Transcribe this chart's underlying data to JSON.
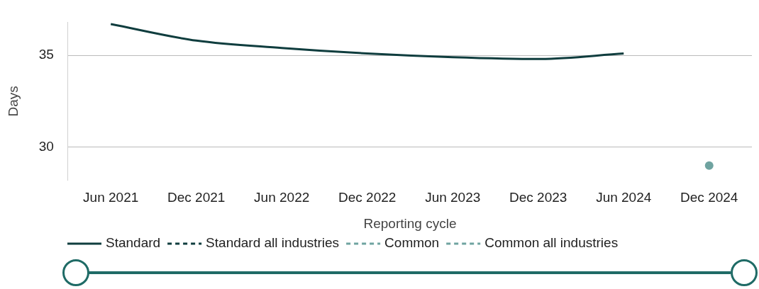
{
  "chart_data": {
    "type": "line",
    "xlabel": "Reporting cycle",
    "ylabel": "Days",
    "categories": [
      "Jun 2021",
      "Dec 2021",
      "Jun 2022",
      "Dec 2022",
      "Jun 2023",
      "Dec 2023",
      "Jun 2024",
      "Dec 2024"
    ],
    "series": [
      {
        "name": "Standard",
        "color": "#0f3d3e",
        "line_style": "solid",
        "marker": "none",
        "values": [
          36.7,
          35.8,
          35.4,
          35.1,
          34.9,
          34.8,
          35.1,
          null
        ]
      },
      {
        "name": "Standard all industries",
        "color": "#0f3d3e",
        "line_style": "dashed",
        "marker": "none",
        "values": [
          null,
          null,
          null,
          null,
          null,
          null,
          null,
          null
        ]
      },
      {
        "name": "Common",
        "color": "#6fa3a0",
        "line_style": "dashed",
        "marker": "circle",
        "values": [
          null,
          null,
          null,
          null,
          null,
          null,
          null,
          29.0
        ]
      },
      {
        "name": "Common all industries",
        "color": "#6fa3a0",
        "line_style": "dashed",
        "marker": "none",
        "values": [
          null,
          null,
          null,
          null,
          null,
          null,
          null,
          null
        ]
      }
    ],
    "ylim": [
      28.2,
      36.8
    ],
    "yticks": [
      30,
      35
    ],
    "grid": "y",
    "legend": "bottom"
  }
}
